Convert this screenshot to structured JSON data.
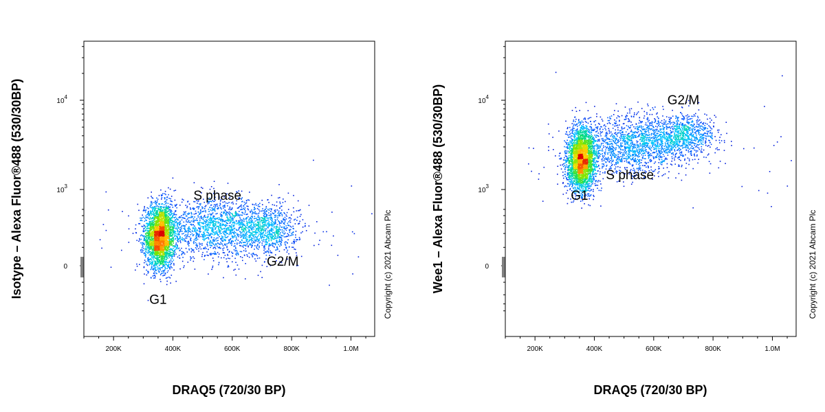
{
  "chart_data": [
    {
      "type": "scatter",
      "title": "",
      "xlabel": "DRAQ5 (720/30 BP)",
      "ylabel": "Isotype – Alexa Fluor®488 (530/30BP)",
      "x_ticks": [
        "200K",
        "400K",
        "600K",
        "800K",
        "1.0M"
      ],
      "x_tick_values": [
        200000,
        400000,
        600000,
        800000,
        1000000
      ],
      "xlim": [
        100000,
        1080000
      ],
      "y_ticks": [
        "0",
        "10^3",
        "10^4"
      ],
      "y_scale": "biexponential",
      "grid": false,
      "legend": "none",
      "annotations": [
        {
          "text": "G1",
          "x": 350000,
          "y": -300
        },
        {
          "text": "S phase",
          "x": 550000,
          "y": 700
        },
        {
          "text": "G2/M",
          "x": 770000,
          "y": 0
        }
      ],
      "populations": [
        {
          "name": "G1",
          "x_center": 355000,
          "y_center": 180,
          "fraction": 0.55
        },
        {
          "name": "S phase",
          "x_center": 550000,
          "y_center": 250,
          "fraction": 0.3
        },
        {
          "name": "G2/M",
          "x_center": 720000,
          "y_center": 240,
          "fraction": 0.15
        }
      ],
      "copyright": "Copyright (c) 2021 Abcam Plc"
    },
    {
      "type": "scatter",
      "title": "",
      "xlabel": "DRAQ5 (720/30 BP)",
      "ylabel": "Wee1 – Alexa Fluor®488 (530/30BP)",
      "x_ticks": [
        "200K",
        "400K",
        "600K",
        "800K",
        "1.0M"
      ],
      "x_tick_values": [
        200000,
        400000,
        600000,
        800000,
        1000000
      ],
      "xlim": [
        100000,
        1080000
      ],
      "y_ticks": [
        "0",
        "10^3",
        "10^4"
      ],
      "y_scale": "biexponential",
      "grid": false,
      "legend": "none",
      "annotations": [
        {
          "text": "G1",
          "x": 350000,
          "y": 700
        },
        {
          "text": "S phase",
          "x": 520000,
          "y": 1300
        },
        {
          "text": "G2/M",
          "x": 700000,
          "y": 9000
        }
      ],
      "populations": [
        {
          "name": "G1",
          "x_center": 355000,
          "y_center": 2200,
          "fraction": 0.55
        },
        {
          "name": "S phase",
          "x_center": 530000,
          "y_center": 3200,
          "fraction": 0.3
        },
        {
          "name": "G2/M",
          "x_center": 700000,
          "y_center": 4000,
          "fraction": 0.15
        }
      ],
      "copyright": "Copyright (c) 2021 Abcam Plc"
    }
  ]
}
